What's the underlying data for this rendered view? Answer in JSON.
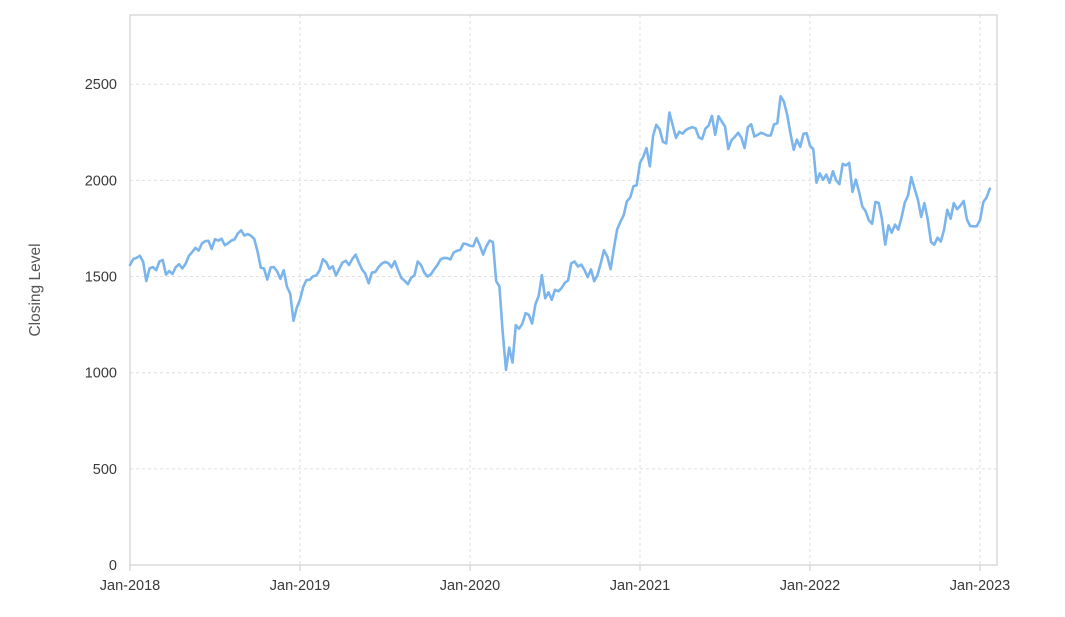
{
  "chart": {
    "line_color": "#7cb5ec",
    "grid_color": "#dfdfdf",
    "axis_color": "#c9c9c9",
    "tick_label_color": "#3a3a3a",
    "axis_title_color": "#555555",
    "background": "#ffffff"
  },
  "chart_data": {
    "type": "line",
    "title": "",
    "xlabel": "",
    "ylabel": "Closing Level",
    "grid": true,
    "legend": false,
    "x_tick_labels": [
      "Jan-2018",
      "Jan-2019",
      "Jan-2020",
      "Jan-2021",
      "Jan-2022",
      "Jan-2023"
    ],
    "x_tick_positions": [
      2018,
      2019,
      2020,
      2021,
      2022,
      2023
    ],
    "y_ticks": [
      0,
      500,
      1000,
      1500,
      2000,
      2500
    ],
    "xlim": [
      2018.0,
      2023.1
    ],
    "ylim": [
      0,
      2860
    ],
    "series": [
      {
        "name": "Closing Level",
        "x_start": 2018.0,
        "x_step": 0.0192308,
        "values": [
          1560,
          1591,
          1597,
          1608,
          1577,
          1477,
          1543,
          1549,
          1533,
          1578,
          1586,
          1510,
          1529,
          1513,
          1549,
          1564,
          1542,
          1566,
          1607,
          1627,
          1649,
          1635,
          1672,
          1684,
          1686,
          1643,
          1694,
          1687,
          1697,
          1663,
          1673,
          1687,
          1693,
          1725,
          1740,
          1713,
          1721,
          1712,
          1696,
          1632,
          1546,
          1542,
          1484,
          1547,
          1549,
          1527,
          1488,
          1533,
          1448,
          1411,
          1270,
          1337,
          1380,
          1447,
          1482,
          1483,
          1502,
          1506,
          1532,
          1590,
          1575,
          1540,
          1553,
          1506,
          1539,
          1573,
          1582,
          1560,
          1591,
          1614,
          1573,
          1536,
          1514,
          1465,
          1521,
          1523,
          1549,
          1567,
          1576,
          1570,
          1548,
          1579,
          1533,
          1493,
          1478,
          1460,
          1495,
          1505,
          1578,
          1560,
          1521,
          1500,
          1511,
          1536,
          1559,
          1589,
          1597,
          1596,
          1589,
          1625,
          1634,
          1638,
          1672,
          1668,
          1660,
          1658,
          1700,
          1662,
          1614,
          1657,
          1687,
          1679,
          1476,
          1449,
          1210,
          1014,
          1131,
          1053,
          1247,
          1229,
          1254,
          1310,
          1301,
          1256,
          1355,
          1400,
          1507,
          1387,
          1418,
          1379,
          1431,
          1423,
          1440,
          1467,
          1480,
          1569,
          1578,
          1552,
          1562,
          1535,
          1497,
          1537,
          1475,
          1508,
          1570,
          1637,
          1603,
          1538,
          1644,
          1744,
          1785,
          1819,
          1892,
          1911,
          1970,
          1975,
          2091,
          2123,
          2168,
          2073,
          2233,
          2289,
          2266,
          2201,
          2192,
          2353,
          2287,
          2221,
          2253,
          2243,
          2262,
          2271,
          2277,
          2271,
          2224,
          2215,
          2269,
          2286,
          2336,
          2237,
          2334,
          2306,
          2280,
          2163,
          2209,
          2226,
          2248,
          2223,
          2168,
          2277,
          2292,
          2228,
          2237,
          2248,
          2241,
          2233,
          2234,
          2291,
          2297,
          2437,
          2411,
          2343,
          2246,
          2159,
          2212,
          2174,
          2242,
          2245,
          2180,
          2162,
          1988,
          2037,
          2003,
          2030,
          1987,
          2048,
          2000,
          1980,
          2086,
          2078,
          2091,
          1940,
          2004,
          1941,
          1864,
          1840,
          1793,
          1774,
          1888,
          1883,
          1800,
          1666,
          1766,
          1728,
          1770,
          1744,
          1806,
          1885,
          1922,
          2017,
          1957,
          1900,
          1810,
          1882,
          1798,
          1680,
          1665,
          1702,
          1682,
          1742,
          1847,
          1800,
          1882,
          1850,
          1869,
          1893,
          1797,
          1763,
          1761,
          1761,
          1793,
          1887,
          1911,
          1957
        ]
      }
    ]
  }
}
